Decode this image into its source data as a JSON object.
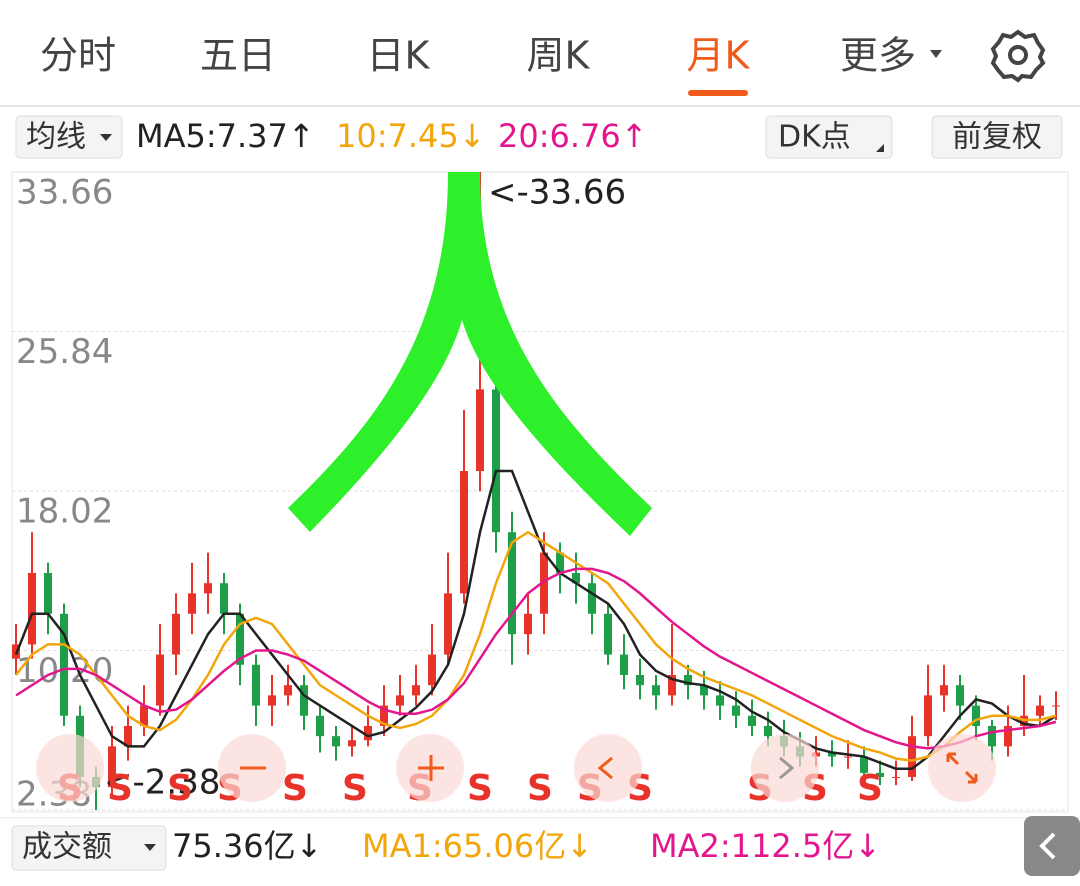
{
  "tabs": [
    "分时",
    "五日",
    "日K",
    "周K",
    "月K",
    "更多"
  ],
  "indicator_bar": {
    "selector": "均线",
    "ma5": "MA5:7.37↑",
    "ma10": "10:7.45↓",
    "ma20": "20:6.76↑",
    "dk": "DK点",
    "adjust": "前复权"
  },
  "volume_bar": {
    "selector": "成交额",
    "amount": "75.36亿↓",
    "ma1": "MA1:65.06亿↓",
    "ma2": "MA2:112.5亿↓"
  },
  "signal_labels": [
    "S",
    "S",
    "S",
    "S",
    "S",
    "S",
    "S",
    "S",
    "S",
    "S",
    "S",
    "S",
    "S",
    "S"
  ],
  "chart_data": {
    "type": "candlestick",
    "ylim": [
      2.38,
      33.66
    ],
    "yticks": [
      2.38,
      {
        "value": 10.2,
        "label": "10.20"
      },
      18.02,
      25.84,
      33.66
    ],
    "grid": true,
    "up_color": "#e8332b",
    "down_color": "#1e9e48",
    "annotations": [
      {
        "value": 33.66,
        "label": "<-33.66"
      },
      {
        "value": 2.38,
        "label": "<-2.38"
      }
    ],
    "open": [
      9.8,
      10.5,
      14,
      12,
      7,
      4,
      3.5,
      5.5,
      6.5,
      7.5,
      10,
      12,
      13,
      13.5,
      12,
      9.5,
      7.5,
      8,
      8.5,
      7,
      6,
      5.5,
      5.8,
      6.5,
      7.5,
      8,
      8.5,
      10,
      13,
      19,
      23,
      16,
      11,
      12,
      15,
      14,
      13.5,
      12,
      10,
      9,
      8.5,
      8,
      9,
      8.5,
      8,
      7.5,
      7,
      6.5,
      6,
      5.5,
      5,
      5.2,
      5,
      5,
      4.2,
      4,
      4,
      6,
      8,
      8.5,
      7.5,
      6.5,
      5.5,
      6.5,
      7,
      7.5
    ],
    "close": [
      10.5,
      14,
      12,
      7,
      4,
      3.5,
      5.5,
      6.5,
      7.5,
      10,
      12,
      13,
      13.5,
      12,
      9.5,
      7.5,
      8,
      8.5,
      7,
      6,
      5.5,
      5.8,
      6.5,
      7.5,
      8,
      8.5,
      10,
      13,
      19,
      23,
      16,
      11,
      12,
      15,
      14,
      13.5,
      12,
      10,
      9,
      8.5,
      8,
      9,
      8.5,
      8,
      7.5,
      7,
      6.5,
      6,
      5.5,
      5,
      5.2,
      5,
      5,
      4.2,
      4,
      4,
      6,
      8,
      8.5,
      7.5,
      6.5,
      5.5,
      6.5,
      7,
      7.5,
      7.5
    ],
    "high": [
      11.5,
      16,
      14.5,
      12.5,
      7.5,
      4.5,
      6.5,
      7.5,
      8.5,
      11.5,
      13,
      14.5,
      15,
      14,
      12.5,
      10,
      9,
      9.5,
      9,
      7.5,
      6.5,
      6.5,
      7.5,
      8.5,
      9,
      9.5,
      11.5,
      15,
      22,
      33.66,
      24,
      17,
      13,
      16,
      15.5,
      15,
      14,
      12.5,
      11,
      9.8,
      9,
      11.5,
      9.5,
      9.2,
      8.7,
      8.2,
      7.8,
      7.2,
      6.8,
      6.2,
      6,
      5.8,
      5.8,
      5.5,
      4.8,
      4.8,
      7,
      9.5,
      9.5,
      9,
      8,
      6.8,
      7.5,
      9,
      8,
      8.2
    ],
    "low": [
      9,
      9.8,
      11,
      6.5,
      3.5,
      2.38,
      3,
      4.8,
      6,
      7,
      9,
      11,
      12,
      11,
      8.5,
      6.5,
      6.5,
      7.5,
      6.3,
      5.2,
      4.8,
      5,
      5.5,
      6,
      7,
      7.5,
      8,
      9.5,
      12.5,
      18,
      15,
      9.5,
      10,
      11,
      13,
      12.5,
      11,
      9.5,
      8.3,
      7.8,
      7.3,
      7.5,
      7.8,
      7.3,
      6.8,
      6.4,
      6,
      5.5,
      5,
      4.5,
      4.5,
      4.5,
      4.4,
      3.8,
      3.6,
      3.6,
      3.8,
      5.5,
      7.2,
      6.8,
      5.8,
      4.8,
      5,
      6,
      6.5,
      6.8
    ],
    "series": [
      {
        "color": "#222222",
        "values": [
          10,
          12,
          12,
          11,
          9,
          7.5,
          6,
          5.5,
          5.5,
          6.5,
          8,
          9.5,
          11,
          12,
          12,
          11,
          10,
          9,
          8,
          7.5,
          7,
          6.5,
          6,
          6.2,
          6.8,
          7.4,
          8.2,
          9.5,
          12,
          16,
          19,
          19,
          17,
          15,
          14,
          13.5,
          13,
          12.5,
          11.5,
          10,
          9.2,
          8.8,
          8.6,
          8.5,
          8.2,
          7.8,
          7.2,
          6.8,
          6.2,
          5.8,
          5.4,
          5.2,
          5.1,
          5,
          4.7,
          4.4,
          4.4,
          5,
          6,
          7,
          7.8,
          7.6,
          7,
          6.6,
          6.5,
          7
        ]
      },
      {
        "color": "#f2a60c",
        "values": [
          9,
          10,
          10.5,
          10.5,
          10,
          9,
          8,
          7,
          6.5,
          6.3,
          6.8,
          7.8,
          9,
          10.5,
          11.5,
          11.8,
          11.5,
          10.5,
          9.5,
          8.5,
          8,
          7.5,
          7,
          6.6,
          6.4,
          6.6,
          7,
          7.8,
          9,
          11,
          13.5,
          15.5,
          16,
          15.5,
          15,
          14.5,
          14,
          13.5,
          12.5,
          11.5,
          10.5,
          9.8,
          9.3,
          8.9,
          8.6,
          8.3,
          8,
          7.6,
          7.2,
          6.8,
          6.4,
          6,
          5.7,
          5.4,
          5.2,
          4.9,
          4.8,
          5,
          5.5,
          6.2,
          6.8,
          7,
          7,
          6.8,
          6.8,
          7
        ]
      },
      {
        "color": "#e3168e",
        "values": [
          8,
          8.5,
          9,
          9.3,
          9.3,
          9,
          8.5,
          8,
          7.5,
          7.2,
          7.3,
          7.8,
          8.5,
          9.2,
          9.8,
          10.2,
          10.2,
          10,
          9.7,
          9.2,
          8.7,
          8.2,
          7.7,
          7.3,
          7.1,
          7.1,
          7.3,
          7.8,
          8.6,
          9.8,
          11,
          12,
          13,
          13.6,
          14,
          14.2,
          14.2,
          14,
          13.6,
          13,
          12.3,
          11.6,
          11,
          10.4,
          9.9,
          9.5,
          9.1,
          8.7,
          8.3,
          7.9,
          7.5,
          7.1,
          6.7,
          6.3,
          6,
          5.7,
          5.5,
          5.4,
          5.5,
          5.7,
          6,
          6.2,
          6.3,
          6.4,
          6.5,
          6.7
        ]
      }
    ]
  }
}
